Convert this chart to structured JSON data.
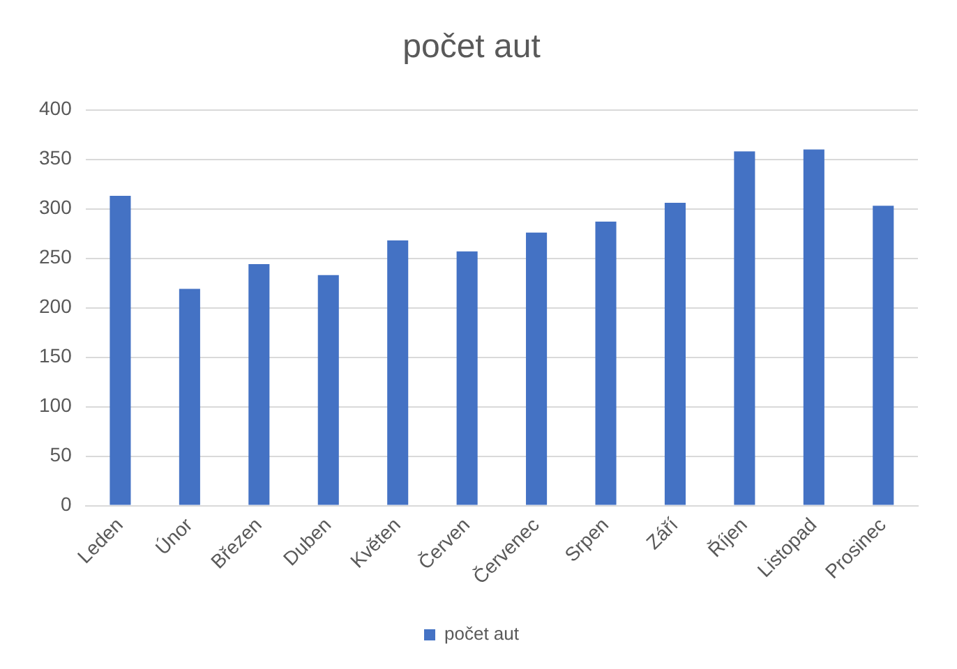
{
  "chart_data": {
    "type": "bar",
    "title": "počet aut",
    "categories": [
      "Leden",
      "Únor",
      "Březen",
      "Duben",
      "Květen",
      "Červen",
      "Červenec",
      "Srpen",
      "Září",
      "Říjen",
      "Listopad",
      "Prosinec"
    ],
    "series": [
      {
        "name": "počet aut",
        "color": "#4472c4",
        "values": [
          313,
          219,
          244,
          233,
          268,
          257,
          276,
          287,
          306,
          358,
          360,
          303
        ]
      }
    ],
    "ylim": [
      0,
      400
    ],
    "yticks": [
      0,
      50,
      100,
      150,
      200,
      250,
      300,
      350,
      400
    ],
    "grid": "y",
    "legend": "bottom"
  }
}
